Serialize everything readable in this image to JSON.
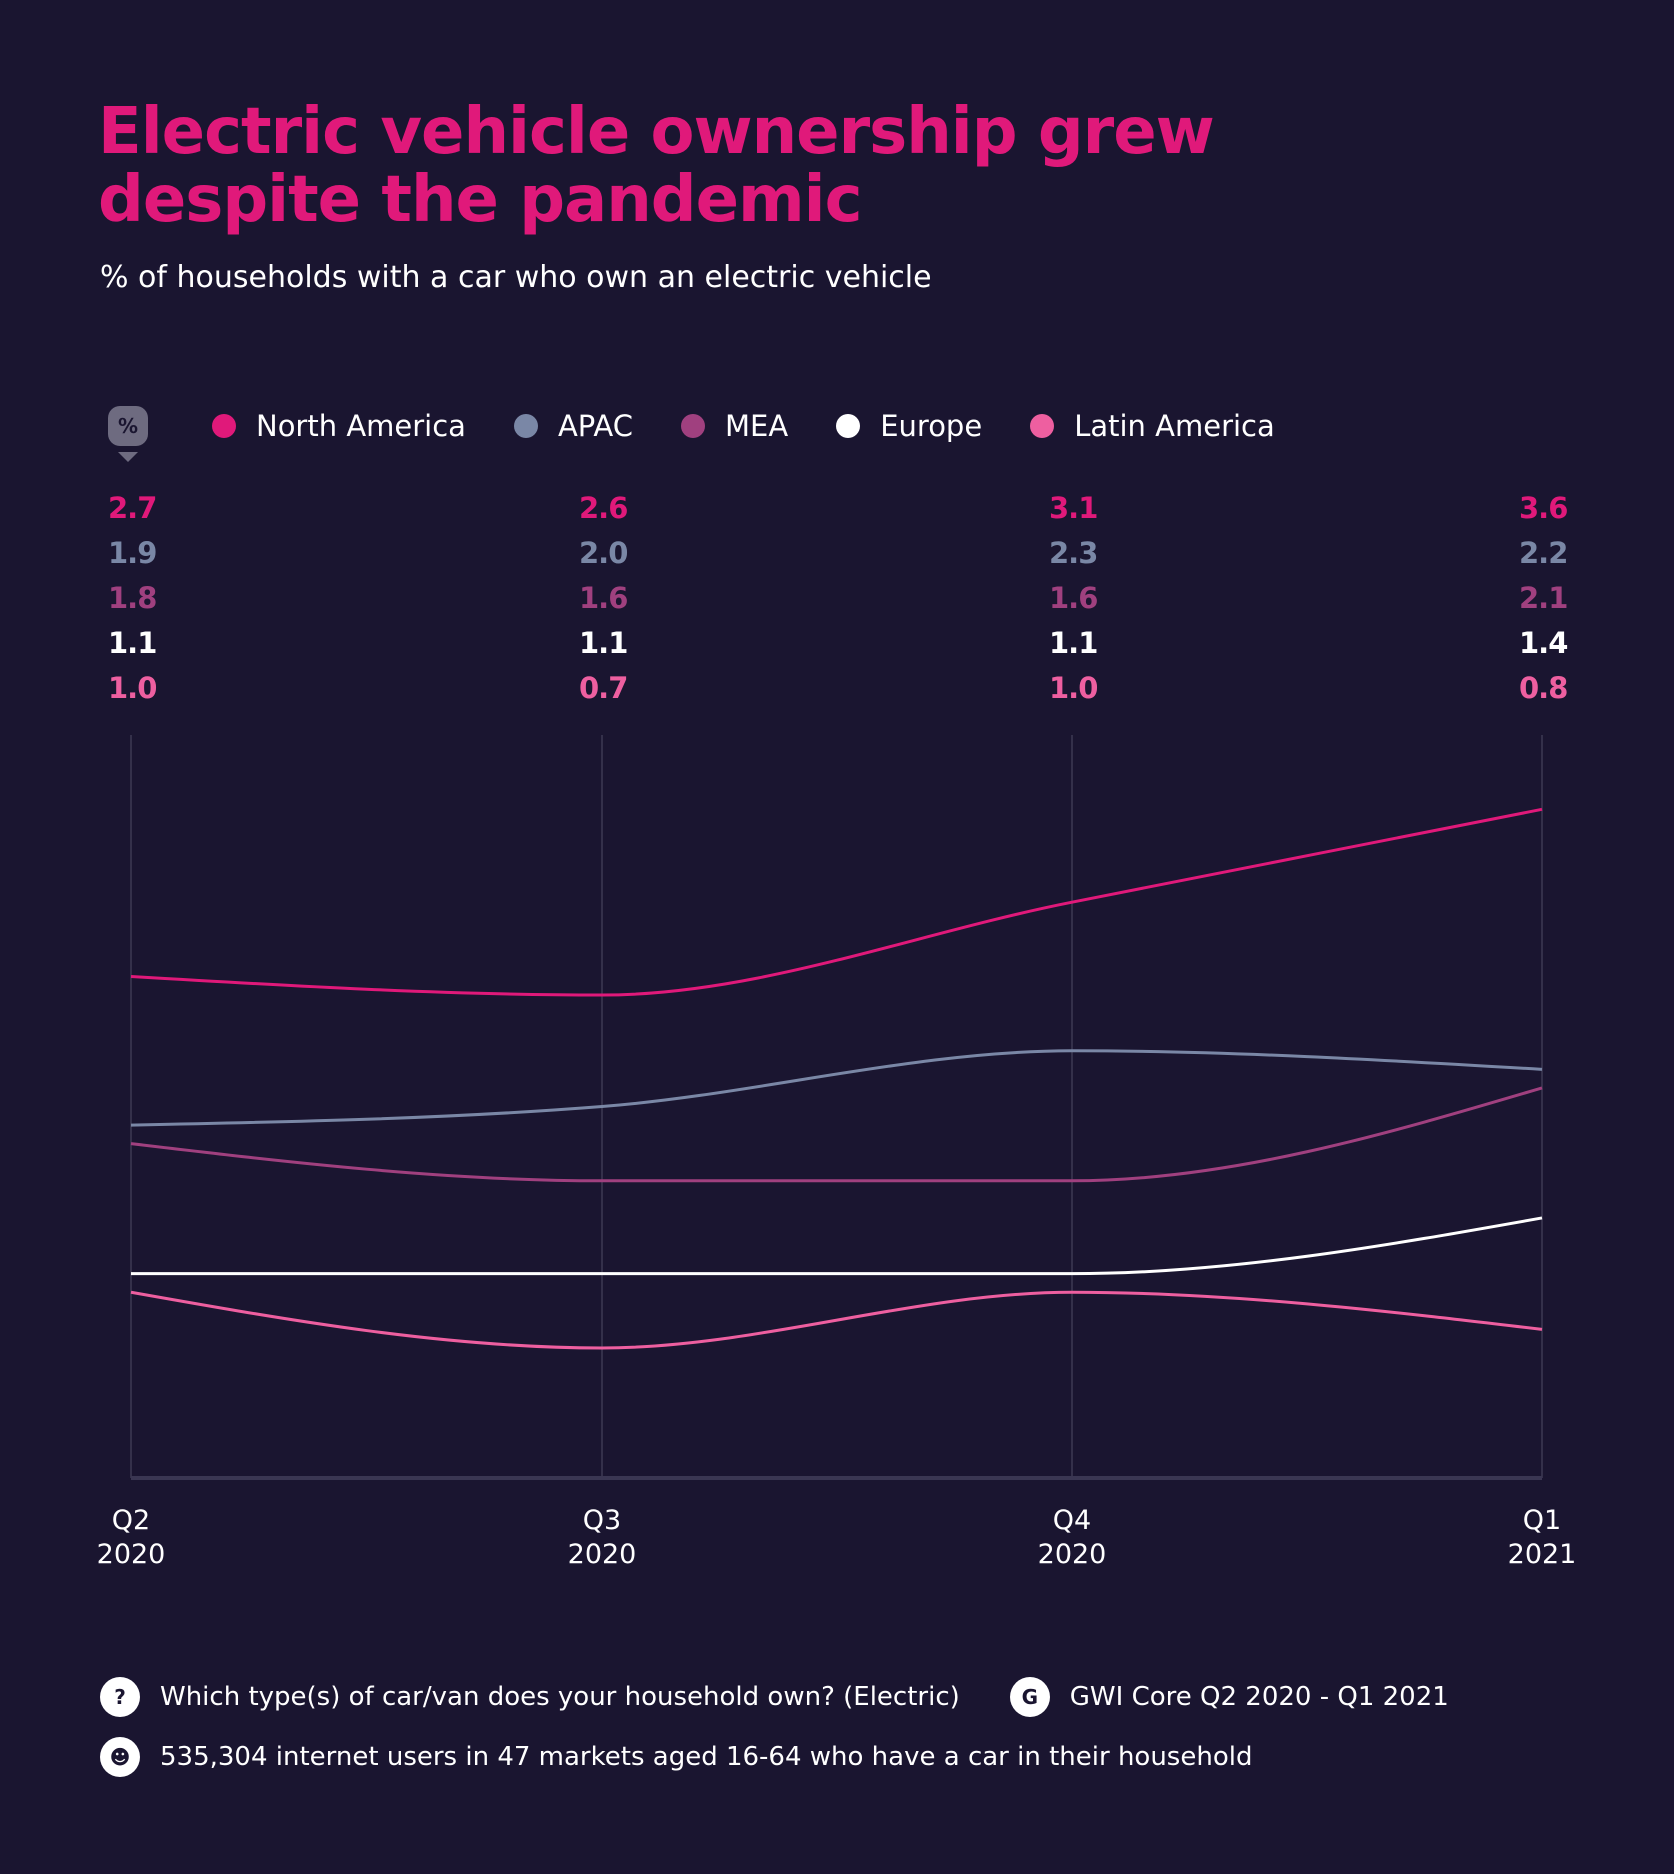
{
  "chart_data": {
    "type": "line",
    "title": "Electric vehicle ownership grew despite the pandemic",
    "subtitle": "% of households with a car who own an electric vehicle",
    "unit_badge": "%",
    "categories": [
      [
        "Q2",
        "2020"
      ],
      [
        "Q3",
        "2020"
      ],
      [
        "Q4",
        "2020"
      ],
      [
        "Q1",
        "2021"
      ]
    ],
    "ylim": [
      0,
      4
    ],
    "grid": "vertical",
    "legend_position": "top-left",
    "series": [
      {
        "name": "North America",
        "color": "#e0197a",
        "values": [
          2.7,
          2.6,
          3.1,
          3.6
        ]
      },
      {
        "name": "APAC",
        "color": "#7a87a6",
        "values": [
          1.9,
          2.0,
          2.3,
          2.2
        ]
      },
      {
        "name": "MEA",
        "color": "#a0407f",
        "values": [
          1.8,
          1.6,
          1.6,
          2.1
        ]
      },
      {
        "name": "Europe",
        "color": "#ffffff",
        "values": [
          1.1,
          1.1,
          1.1,
          1.4
        ]
      },
      {
        "name": "Latin America",
        "color": "#ee5fa0",
        "values": [
          1.0,
          0.7,
          1.0,
          0.8
        ]
      }
    ]
  },
  "footer": {
    "question_icon": "question-icon",
    "question": "Which type(s) of car/van does your household own? (Electric)",
    "source_icon": "gwi-logo-icon",
    "source": "GWI Core Q2 2020 - Q1 2021",
    "audience_icon": "people-icon",
    "audience": "535,304 internet users in 47 markets aged 16-64 who have a car in their household"
  }
}
